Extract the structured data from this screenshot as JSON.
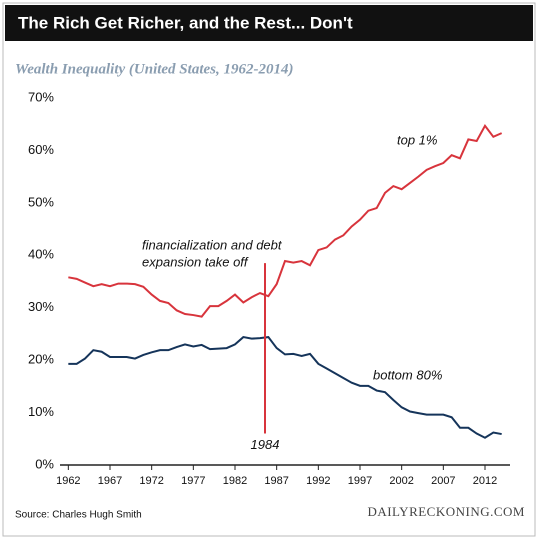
{
  "chart_data": {
    "type": "line",
    "title": "The Rich Get Richer, and the Rest... Don't",
    "subtitle": "Wealth Inequality (United States, 1962-2014)",
    "x": [
      1962,
      1963,
      1964,
      1965,
      1966,
      1967,
      1968,
      1969,
      1970,
      1971,
      1972,
      1973,
      1974,
      1975,
      1976,
      1977,
      1978,
      1979,
      1980,
      1981,
      1982,
      1983,
      1984,
      1985,
      1986,
      1987,
      1988,
      1989,
      1990,
      1991,
      1992,
      1993,
      1994,
      1995,
      1996,
      1997,
      1998,
      1999,
      2000,
      2001,
      2002,
      2003,
      2004,
      2005,
      2006,
      2007,
      2008,
      2009,
      2010,
      2011,
      2012,
      2013,
      2014
    ],
    "series": [
      {
        "name": "top 1%",
        "color": "#d8343c",
        "values": [
          35.8,
          35.5,
          34.8,
          34.1,
          34.5,
          34.1,
          34.6,
          34.6,
          34.5,
          34.0,
          32.5,
          31.3,
          30.9,
          29.5,
          28.8,
          28.6,
          28.3,
          30.3,
          30.3,
          31.3,
          32.5,
          31.0,
          32.0,
          32.8,
          32.2,
          34.5,
          38.9,
          38.6,
          38.9,
          38.1,
          41.0,
          41.5,
          43.0,
          43.8,
          45.5,
          46.8,
          48.5,
          49.0,
          51.9,
          53.2,
          52.6,
          53.8,
          55.0,
          56.3,
          57.0,
          57.6,
          59.1,
          58.5,
          62.1,
          61.8,
          64.7,
          62.6,
          63.3
        ]
      },
      {
        "name": "bottom 80%",
        "color": "#15345a",
        "values": [
          19.3,
          19.3,
          20.3,
          21.9,
          21.6,
          20.6,
          20.6,
          20.6,
          20.3,
          21.0,
          21.5,
          21.9,
          21.9,
          22.5,
          23.0,
          22.6,
          22.9,
          22.1,
          22.2,
          22.3,
          23.0,
          24.4,
          24.1,
          24.2,
          24.4,
          22.3,
          21.1,
          21.2,
          20.8,
          21.2,
          19.3,
          18.4,
          17.5,
          16.6,
          15.7,
          15.1,
          15.1,
          14.2,
          13.9,
          12.4,
          11.0,
          10.2,
          9.9,
          9.6,
          9.6,
          9.6,
          9.1,
          7.1,
          7.1,
          6.0,
          5.2,
          6.2,
          5.9
        ]
      }
    ],
    "xlim": [
      1961,
      2015
    ],
    "xticks": [
      1962,
      1967,
      1972,
      1977,
      1982,
      1987,
      1992,
      1997,
      2002,
      2007,
      2012
    ],
    "ylim": [
      0,
      70
    ],
    "yticks": [
      {
        "value": 0,
        "label": "0%"
      },
      {
        "value": 10,
        "label": "10%"
      },
      {
        "value": 20,
        "label": "20%"
      },
      {
        "value": 30,
        "label": "30%"
      },
      {
        "value": 40,
        "label": "40%"
      },
      {
        "value": 50,
        "label": "50%"
      },
      {
        "value": 60,
        "label": "60%"
      },
      {
        "value": 70,
        "label": "70%"
      }
    ],
    "marker": {
      "x": 1985.6,
      "from": 6,
      "to": 38.5,
      "label": "1984",
      "color": "#d8343c",
      "annotation": [
        "financialization and debt",
        "expansion take off"
      ]
    },
    "source": "Source: Charles Hugh Smith",
    "brand": "DAILYRECKONING.COM"
  }
}
